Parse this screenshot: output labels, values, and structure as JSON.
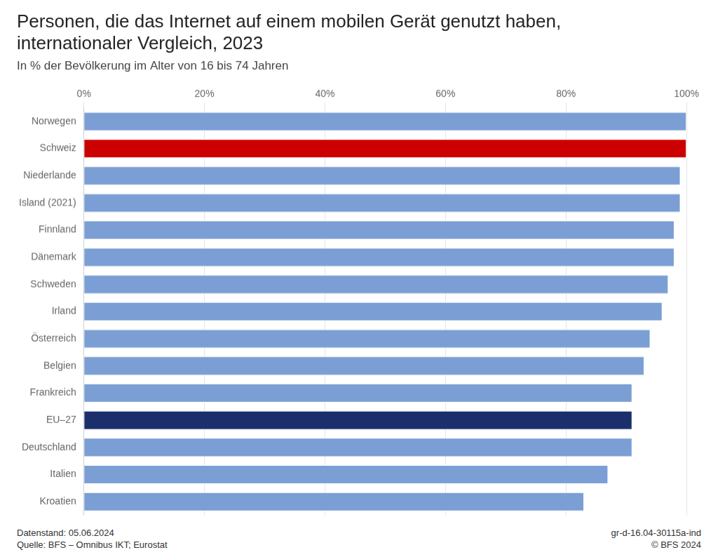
{
  "chart_data": {
    "type": "bar",
    "orientation": "horizontal",
    "title": [
      "Personen, die das Internet auf einem mobilen Gerät genutzt haben,",
      "internationaler Vergleich, 2023"
    ],
    "subtitle": "In % der Bevölkerung im Alter von 16 bis 74 Jahren",
    "categories": [
      "Kroatien",
      "Italien",
      "Deutschland",
      "EU–27",
      "Frankreich",
      "Belgien",
      "Österreich",
      "Irland",
      "Schweden",
      "Dänemark",
      "Finnland",
      "Island (2021)",
      "Niederlande",
      "Schweiz",
      "Norwegen"
    ],
    "values": [
      83,
      87,
      91,
      91,
      91,
      93,
      94,
      96,
      97,
      98,
      98,
      99,
      99,
      100,
      100
    ],
    "colors": [
      "#7b9fd4",
      "#7b9fd4",
      "#7b9fd4",
      "#1a2f6b",
      "#7b9fd4",
      "#7b9fd4",
      "#7b9fd4",
      "#7b9fd4",
      "#7b9fd4",
      "#7b9fd4",
      "#7b9fd4",
      "#7b9fd4",
      "#7b9fd4",
      "#cc0000",
      "#7b9fd4"
    ],
    "xlim": [
      0,
      100
    ],
    "xticks": [
      {
        "value": 0,
        "label": "0%"
      },
      {
        "value": 20,
        "label": "20%"
      },
      {
        "value": 40,
        "label": "40%"
      },
      {
        "value": 60,
        "label": "60%"
      },
      {
        "value": 80,
        "label": "80%"
      },
      {
        "value": 100,
        "label": "100%"
      }
    ],
    "grid": true,
    "annotations": [
      "Datenstand: 05.06.2024",
      "Quelle: BFS – Omnibus IKT; Eurostat",
      "gr-d-16.04-30115a-ind",
      "© BFS 2024"
    ]
  }
}
